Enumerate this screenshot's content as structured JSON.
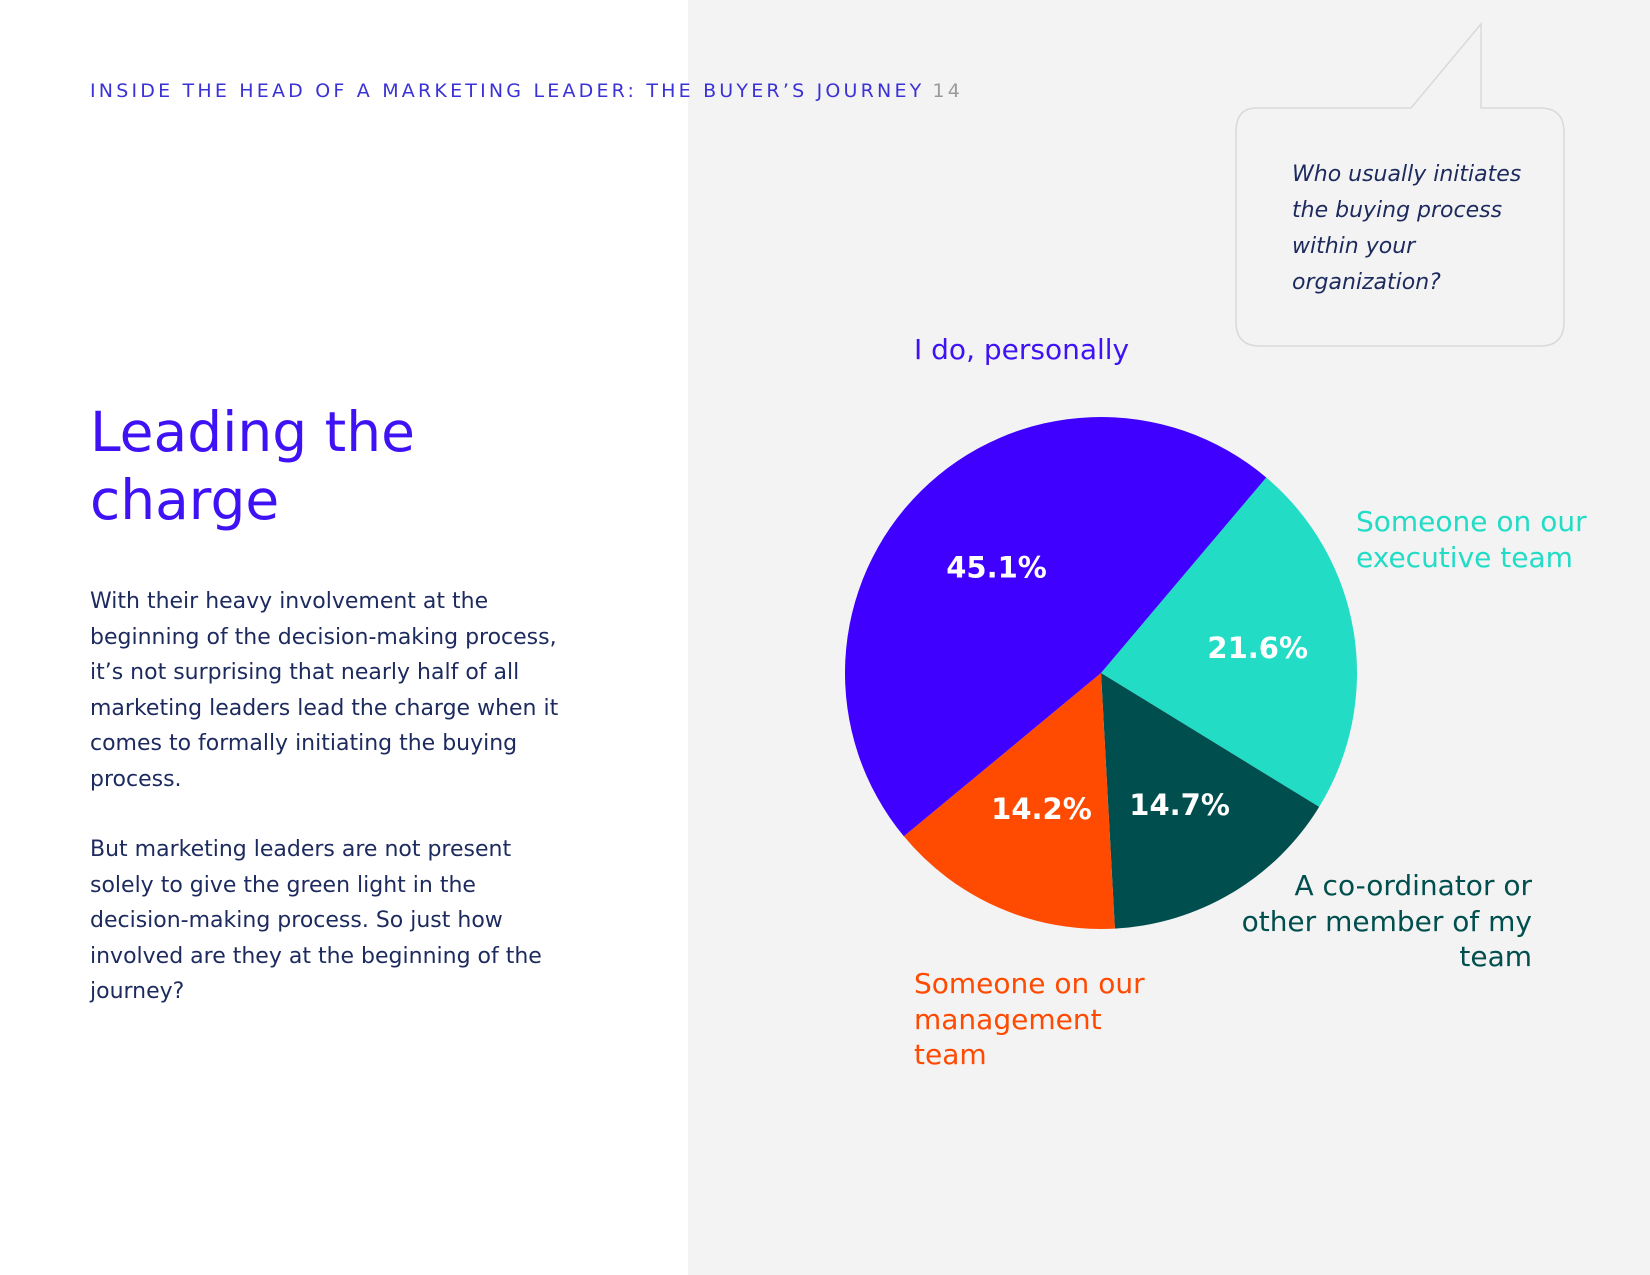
{
  "header": {
    "title": "INSIDE THE HEAD OF A MARKETING LEADER: THE BUYER’S JOURNEY",
    "page_number": "14"
  },
  "page_title": "Leading the charge",
  "paragraphs": [
    "With their heavy involvement at the beginning of the decision-making process, it’s not surprising that nearly half of all marketing leaders lead the charge when it comes to formally initiating the buying process.",
    "But marketing leaders are not present solely to give the green light in the decision-making process.  So just how involved are they at the beginning of the journey?"
  ],
  "question_bubble": {
    "text": "Who usually initiates the buying process within your organization?"
  },
  "chart_data": {
    "type": "pie",
    "title": "Who usually initiates the buying process within your organization?",
    "unit": "%",
    "slices": [
      {
        "label": "Someone on our executive team",
        "value": 21.6,
        "value_label": "21.6%",
        "color": "#22dcc6"
      },
      {
        "label": "A co-ordinator or other member of my team",
        "value": 14.7,
        "value_label": "14.7%",
        "color": "#004f4e"
      },
      {
        "label": "Someone on our management team",
        "value": 14.2,
        "value_label": "14.2%",
        "color": "#ff4a02"
      },
      {
        "label": "I do, personally",
        "value": 45.1,
        "value_label": "45.1%",
        "color": "#3f00ff"
      }
    ]
  }
}
